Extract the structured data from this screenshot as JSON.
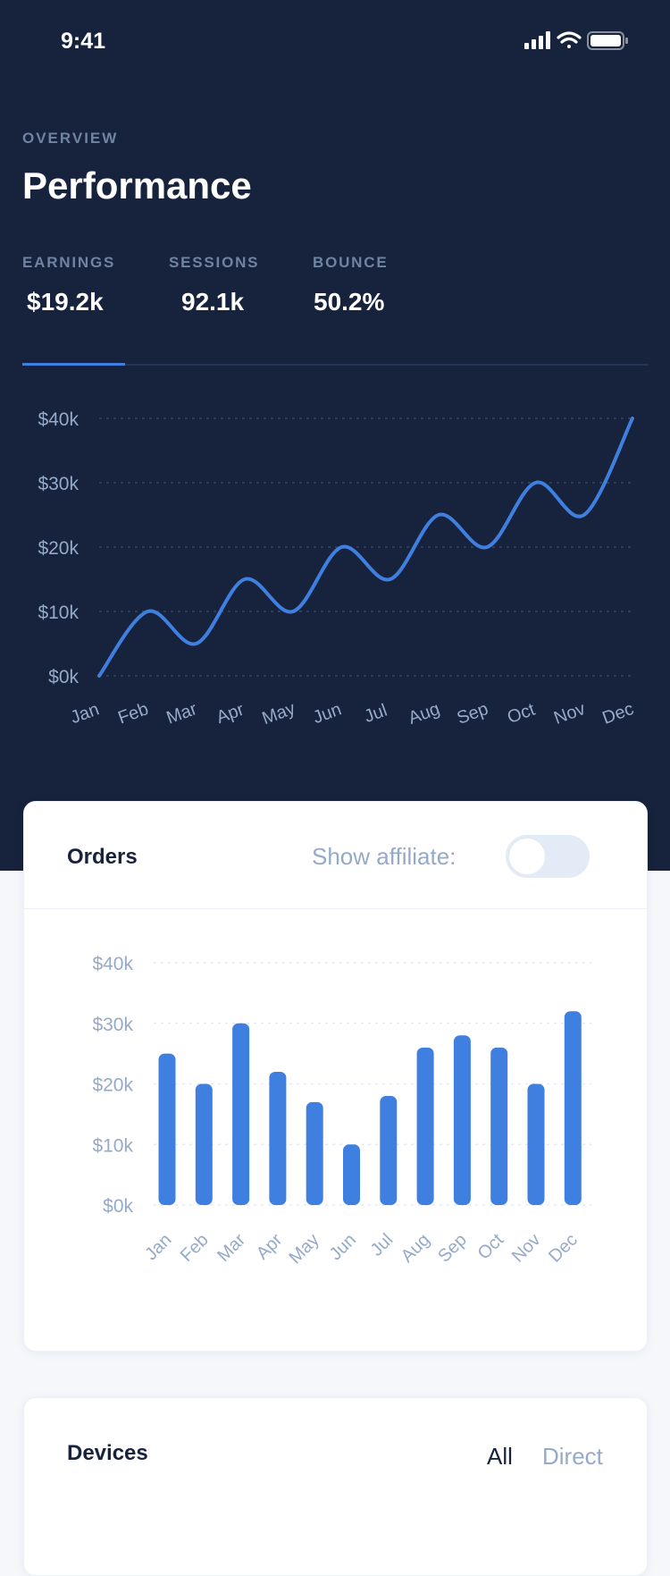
{
  "status_bar": {
    "time": "9:41",
    "icons": [
      "signal-icon",
      "wifi-icon",
      "battery-icon"
    ]
  },
  "header": {
    "eyebrow": "OVERVIEW",
    "title": "Performance"
  },
  "stats": [
    {
      "label": "EARNINGS",
      "value": "$19.2k",
      "active": true
    },
    {
      "label": "SESSIONS",
      "value": "92.1k"
    },
    {
      "label": "BOUNCE",
      "value": "50.2%"
    }
  ],
  "colors": {
    "accent": "#3f7fe0",
    "dark": "#17233d",
    "muted": "#95aac9"
  },
  "chart_data": [
    {
      "type": "line",
      "categories": [
        "Jan",
        "Feb",
        "Mar",
        "Apr",
        "May",
        "Jun",
        "Jul",
        "Aug",
        "Sep",
        "Oct",
        "Nov",
        "Dec"
      ],
      "values": [
        0,
        10,
        5,
        15,
        10,
        20,
        15,
        25,
        20,
        30,
        25,
        40
      ],
      "yticks": [
        "$0k",
        "$10k",
        "$20k",
        "$30k",
        "$40k"
      ],
      "ylim": [
        0,
        40
      ],
      "grid": true
    },
    {
      "type": "bar",
      "title": "Orders",
      "categories": [
        "Jan",
        "Feb",
        "Mar",
        "Apr",
        "May",
        "Jun",
        "Jul",
        "Aug",
        "Sep",
        "Oct",
        "Nov",
        "Dec"
      ],
      "values": [
        25,
        20,
        30,
        22,
        17,
        10,
        18,
        26,
        28,
        26,
        20,
        32
      ],
      "yticks": [
        "$0k",
        "$10k",
        "$20k",
        "$30k",
        "$40k"
      ],
      "ylim": [
        0,
        40
      ],
      "grid": true
    }
  ],
  "orders_card": {
    "title": "Orders",
    "toggle_label": "Show affiliate:",
    "toggle_on": false
  },
  "devices_card": {
    "title": "Devices",
    "tabs": [
      "All",
      "Direct"
    ],
    "active_tab": "All"
  }
}
